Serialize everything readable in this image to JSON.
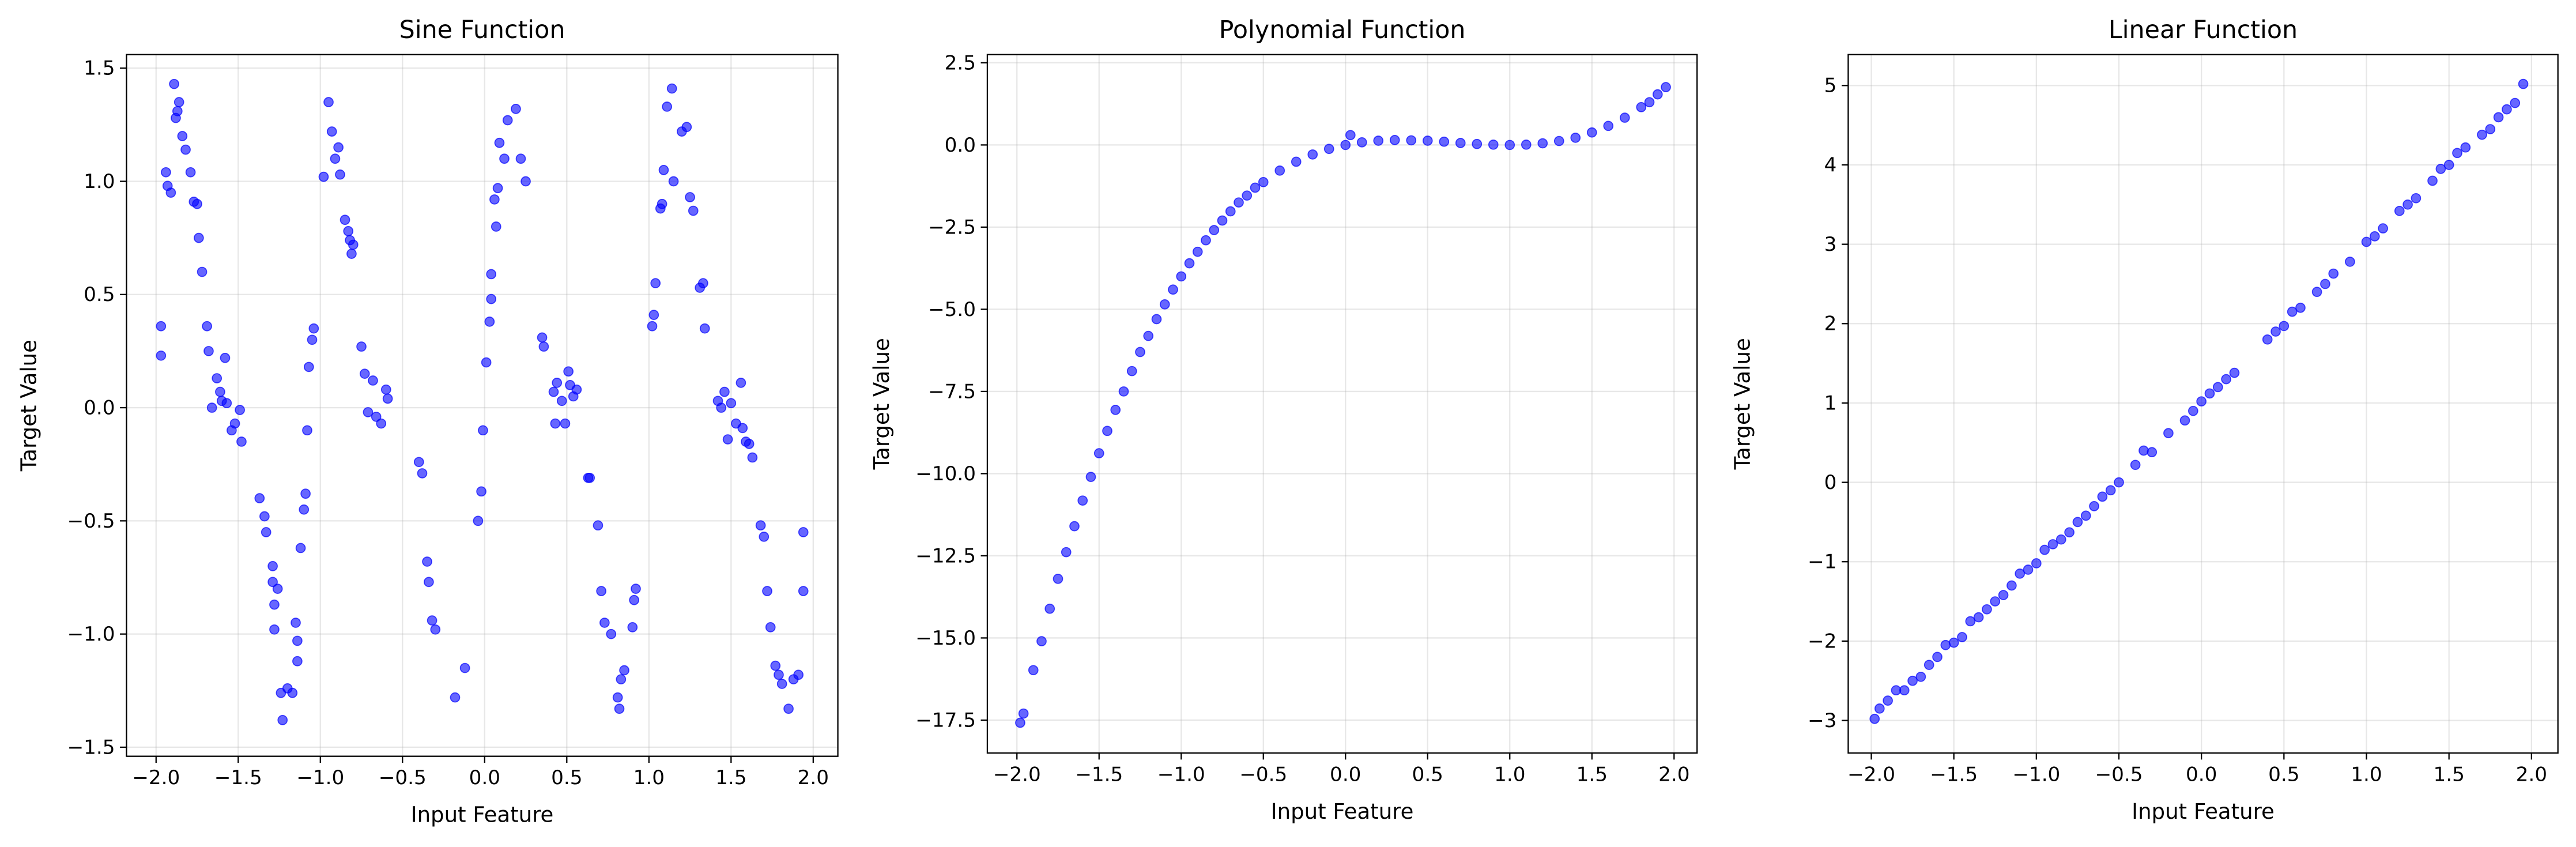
{
  "chart_data": [
    {
      "type": "scatter",
      "title": "Sine Function",
      "x_label": "Input Feature",
      "y_label": "Target Value",
      "color": "blue",
      "grid": true,
      "xlim": [
        -2.18,
        2.15
      ],
      "ylim": [
        -1.54,
        1.56
      ],
      "xticks": [
        {
          "value": -2,
          "label": "−2.0"
        },
        {
          "value": -1.5,
          "label": "−1.5"
        },
        {
          "value": -1,
          "label": "−1.0"
        },
        {
          "value": -0.5,
          "label": "−0.5"
        },
        {
          "value": 0,
          "label": "0.0"
        },
        0.5,
        {
          "value": 1,
          "label": "1.0"
        },
        1.5,
        {
          "value": 2,
          "label": "2.0"
        }
      ],
      "yticks": [
        {
          "value": -1.5,
          "label": "−1.5"
        },
        {
          "value": -1,
          "label": "−1.0"
        },
        {
          "value": -0.5,
          "label": "−0.5"
        },
        {
          "value": 0,
          "label": "0.0"
        },
        0.5,
        {
          "value": 1,
          "label": "1.0"
        },
        1.5
      ],
      "x": [
        -1.97,
        -1.97,
        -1.94,
        -1.93,
        -1.91,
        -1.89,
        -1.88,
        -1.87,
        -1.86,
        -1.84,
        -1.82,
        -1.79,
        -1.77,
        -1.75,
        -1.74,
        -1.72,
        -1.69,
        -1.68,
        -1.66,
        -1.63,
        -1.61,
        -1.6,
        -1.58,
        -1.57,
        -1.54,
        -1.52,
        -1.49,
        -1.48,
        -1.37,
        -1.34,
        -1.33,
        -1.29,
        -1.29,
        -1.28,
        -1.28,
        -1.26,
        -1.24,
        -1.23,
        -1.2,
        -1.17,
        -1.15,
        -1.14,
        -1.14,
        -1.12,
        -1.1,
        -1.09,
        -1.08,
        -1.07,
        -1.05,
        -1.04,
        -0.98,
        -0.95,
        -0.93,
        -0.91,
        -0.89,
        -0.88,
        -0.85,
        -0.83,
        -0.82,
        -0.81,
        -0.8,
        -0.75,
        -0.73,
        -0.71,
        -0.68,
        -0.66,
        -0.63,
        -0.6,
        -0.59,
        -0.4,
        -0.38,
        -0.35,
        -0.34,
        -0.32,
        -0.3,
        -0.18,
        -0.12,
        -0.04,
        -0.02,
        -0.01,
        0.01,
        0.03,
        0.04,
        0.04,
        0.06,
        0.07,
        0.08,
        0.09,
        0.12,
        0.14,
        0.19,
        0.22,
        0.25,
        0.35,
        0.36,
        0.42,
        0.43,
        0.44,
        0.47,
        0.49,
        0.51,
        0.52,
        0.54,
        0.56,
        0.63,
        0.64,
        0.69,
        0.71,
        0.73,
        0.77,
        0.81,
        0.82,
        0.83,
        0.85,
        0.9,
        0.92,
        0.91,
        1.02,
        1.03,
        1.04,
        1.07,
        1.08,
        1.09,
        1.11,
        1.14,
        1.15,
        1.2,
        1.23,
        1.25,
        1.27,
        1.31,
        1.33,
        1.34,
        1.42,
        1.44,
        1.46,
        1.48,
        1.5,
        1.53,
        1.56,
        1.57,
        1.59,
        1.61,
        1.63,
        1.68,
        1.7,
        1.72,
        1.74,
        1.77,
        1.79,
        1.81,
        1.85,
        1.88,
        1.91,
        1.94,
        1.94
      ],
      "y": [
        0.36,
        0.23,
        1.04,
        0.98,
        0.95,
        1.43,
        1.28,
        1.31,
        1.35,
        1.2,
        1.14,
        1.04,
        0.91,
        0.9,
        0.75,
        0.6,
        0.36,
        0.25,
        0.0,
        0.13,
        0.07,
        0.03,
        0.22,
        0.02,
        -0.1,
        -0.07,
        -0.01,
        -0.15,
        -0.4,
        -0.48,
        -0.55,
        -0.7,
        -0.77,
        -0.87,
        -0.98,
        -0.8,
        -1.26,
        -1.38,
        -1.24,
        -1.26,
        -0.95,
        -1.03,
        -1.12,
        -0.62,
        -0.45,
        -0.38,
        -0.1,
        0.18,
        0.3,
        0.35,
        1.02,
        1.35,
        1.22,
        1.1,
        1.15,
        1.03,
        0.83,
        0.78,
        0.74,
        0.68,
        0.72,
        0.27,
        0.15,
        -0.02,
        0.12,
        -0.04,
        -0.07,
        0.08,
        0.04,
        -0.24,
        -0.29,
        -0.68,
        -0.77,
        -0.94,
        -0.98,
        -1.28,
        -1.15,
        -0.5,
        -0.37,
        -0.1,
        0.2,
        0.38,
        0.48,
        0.59,
        0.92,
        0.8,
        0.97,
        1.17,
        1.1,
        1.27,
        1.32,
        1.1,
        1.0,
        0.31,
        0.27,
        0.07,
        -0.07,
        0.11,
        0.03,
        -0.07,
        0.16,
        0.1,
        0.05,
        0.08,
        -0.31,
        -0.31,
        -0.52,
        -0.81,
        -0.95,
        -1.0,
        -1.28,
        -1.33,
        -1.2,
        -1.16,
        -0.97,
        -0.8,
        -0.85,
        0.36,
        0.41,
        0.55,
        0.88,
        0.9,
        1.05,
        1.33,
        1.41,
        1.0,
        1.22,
        1.24,
        0.93,
        0.87,
        0.53,
        0.55,
        0.35,
        0.03,
        0.0,
        0.07,
        -0.14,
        0.02,
        -0.07,
        0.11,
        -0.09,
        -0.15,
        -0.16,
        -0.22,
        -0.52,
        -0.57,
        -0.81,
        -0.97,
        -1.14,
        -1.18,
        -1.22,
        -1.33,
        -1.2,
        -1.18,
        -0.55,
        -0.81
      ]
    },
    {
      "type": "scatter",
      "title": "Polynomial Function",
      "x_label": "Input Feature",
      "y_label": "Target Value",
      "color": "blue",
      "grid": true,
      "xlim": [
        -2.18,
        2.14
      ],
      "ylim": [
        -18.5,
        2.75
      ],
      "xticks": [
        {
          "value": -2,
          "label": "−2.0"
        },
        {
          "value": -1.5,
          "label": "−1.5"
        },
        {
          "value": -1,
          "label": "−1.0"
        },
        {
          "value": -0.5,
          "label": "−0.5"
        },
        {
          "value": 0,
          "label": "0.0"
        },
        0.5,
        {
          "value": 1,
          "label": "1.0"
        },
        1.5,
        {
          "value": 2,
          "label": "2.0"
        }
      ],
      "yticks": [
        {
          "value": -17.5,
          "label": "−17.5"
        },
        {
          "value": -15,
          "label": "−15.0"
        },
        {
          "value": -12.5,
          "label": "−12.5"
        },
        {
          "value": -10,
          "label": "−10.0"
        },
        {
          "value": -7.5,
          "label": "−7.5"
        },
        {
          "value": -5,
          "label": "−5.0"
        },
        {
          "value": -2.5,
          "label": "−2.5"
        },
        {
          "value": 0,
          "label": "0.0"
        },
        2.5
      ],
      "x": [
        -1.98,
        -1.96,
        -1.9,
        -1.85,
        -1.8,
        -1.75,
        -1.7,
        -1.65,
        -1.6,
        -1.55,
        -1.5,
        -1.45,
        -1.4,
        -1.35,
        -1.3,
        -1.25,
        -1.2,
        -1.15,
        -1.1,
        -1.05,
        -1.0,
        -0.95,
        -0.9,
        -0.85,
        -0.8,
        -0.75,
        -0.7,
        -0.65,
        -0.6,
        -0.55,
        -0.5,
        -0.4,
        -0.3,
        -0.2,
        -0.1,
        0.0,
        0.03,
        0.1,
        0.2,
        0.3,
        0.4,
        0.5,
        0.6,
        0.7,
        0.8,
        0.9,
        1.0,
        1.1,
        1.2,
        1.3,
        1.4,
        1.5,
        1.6,
        1.7,
        1.8,
        1.85,
        1.9,
        1.95
      ],
      "y": [
        -17.58,
        -17.3,
        -15.98,
        -15.1,
        -14.11,
        -13.2,
        -12.39,
        -11.6,
        -10.82,
        -10.1,
        -9.38,
        -8.7,
        -8.06,
        -7.5,
        -6.88,
        -6.3,
        -5.81,
        -5.3,
        -4.85,
        -4.4,
        -4.0,
        -3.6,
        -3.25,
        -2.9,
        -2.59,
        -2.3,
        -2.02,
        -1.75,
        -1.54,
        -1.3,
        -1.13,
        -0.78,
        -0.51,
        -0.29,
        -0.12,
        0.0,
        0.3,
        0.08,
        0.13,
        0.15,
        0.14,
        0.13,
        0.1,
        0.06,
        0.03,
        0.01,
        0.0,
        0.01,
        0.05,
        0.12,
        0.22,
        0.38,
        0.58,
        0.83,
        1.15,
        1.3,
        1.54,
        1.76
      ]
    },
    {
      "type": "scatter",
      "title": "Linear Function",
      "x_label": "Input Feature",
      "y_label": "Target Value",
      "color": "blue",
      "grid": true,
      "xlim": [
        -2.14,
        2.16
      ],
      "ylim": [
        -3.41,
        5.39
      ],
      "xticks": [
        {
          "value": -2,
          "label": "−2.0"
        },
        {
          "value": -1.5,
          "label": "−1.5"
        },
        {
          "value": -1,
          "label": "−1.0"
        },
        {
          "value": -0.5,
          "label": "−0.5"
        },
        {
          "value": 0,
          "label": "0.0"
        },
        0.5,
        {
          "value": 1,
          "label": "1.0"
        },
        1.5,
        {
          "value": 2,
          "label": "2.0"
        }
      ],
      "yticks": [
        {
          "value": -3,
          "label": "−3"
        },
        {
          "value": -2,
          "label": "−2"
        },
        {
          "value": -1,
          "label": "−1"
        },
        0,
        1,
        2,
        3,
        4,
        5
      ],
      "x": [
        -1.98,
        -1.95,
        -1.9,
        -1.85,
        -1.8,
        -1.75,
        -1.7,
        -1.65,
        -1.6,
        -1.55,
        -1.5,
        -1.45,
        -1.4,
        -1.35,
        -1.3,
        -1.25,
        -1.2,
        -1.15,
        -1.1,
        -1.05,
        -1.0,
        -0.95,
        -0.9,
        -0.85,
        -0.8,
        -0.75,
        -0.7,
        -0.65,
        -0.6,
        -0.55,
        -0.5,
        -0.4,
        -0.35,
        -0.3,
        -0.2,
        -0.1,
        -0.05,
        0.0,
        0.05,
        0.1,
        0.15,
        0.2,
        0.4,
        0.45,
        0.5,
        0.55,
        0.6,
        0.7,
        0.75,
        0.8,
        0.9,
        1.0,
        1.05,
        1.1,
        1.2,
        1.25,
        1.3,
        1.4,
        1.45,
        1.5,
        1.55,
        1.6,
        1.7,
        1.75,
        1.8,
        1.85,
        1.9,
        1.95
      ],
      "y": [
        -2.98,
        -2.85,
        -2.75,
        -2.62,
        -2.62,
        -2.5,
        -2.45,
        -2.3,
        -2.2,
        -2.05,
        -2.02,
        -1.95,
        -1.75,
        -1.7,
        -1.6,
        -1.5,
        -1.42,
        -1.3,
        -1.15,
        -1.1,
        -1.02,
        -0.85,
        -0.78,
        -0.72,
        -0.63,
        -0.5,
        -0.42,
        -0.3,
        -0.18,
        -0.1,
        0.0,
        0.22,
        0.4,
        0.38,
        0.62,
        0.78,
        0.9,
        1.02,
        1.12,
        1.2,
        1.3,
        1.38,
        1.8,
        1.9,
        1.97,
        2.15,
        2.2,
        2.4,
        2.5,
        2.63,
        2.78,
        3.03,
        3.1,
        3.2,
        3.42,
        3.5,
        3.58,
        3.8,
        3.95,
        4.0,
        4.15,
        4.22,
        4.38,
        4.45,
        4.6,
        4.7,
        4.78,
        5.02
      ]
    }
  ]
}
